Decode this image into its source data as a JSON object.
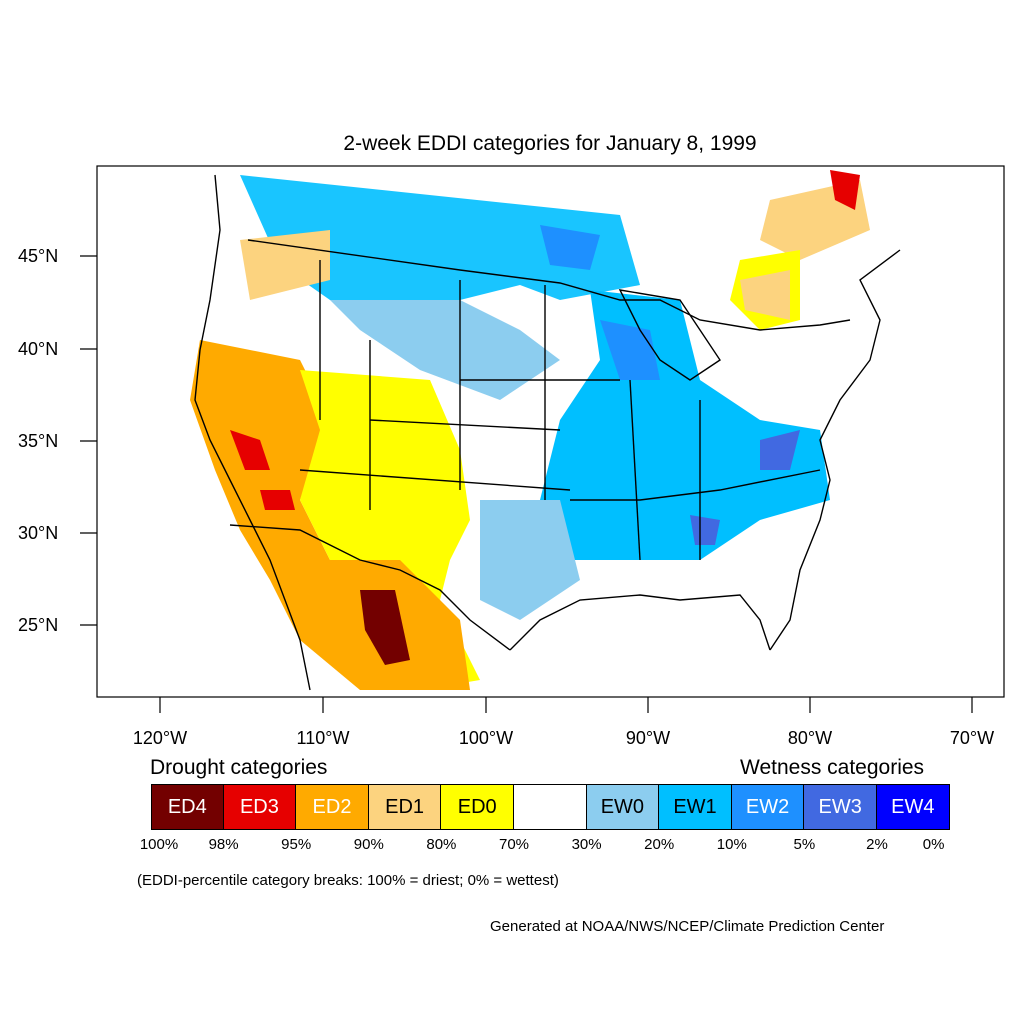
{
  "title": "2-week EDDI categories for January 8, 1999",
  "lat_labels": [
    "45°N",
    "40°N",
    "35°N",
    "30°N",
    "25°N"
  ],
  "lon_labels": [
    "120°W",
    "110°W",
    "100°W",
    "90°W",
    "80°W",
    "70°W"
  ],
  "legend": {
    "drought_heading": "Drought categories",
    "wetness_heading": "Wetness categories",
    "categories": [
      {
        "label": "ED4",
        "color": "#730000",
        "text_color": "#ffffff"
      },
      {
        "label": "ED3",
        "color": "#e60000",
        "text_color": "#ffffff"
      },
      {
        "label": "ED2",
        "color": "#ffaa00",
        "text_color": "#ffffff"
      },
      {
        "label": "ED1",
        "color": "#fcd37f",
        "text_color": "#000000"
      },
      {
        "label": "ED0",
        "color": "#ffff00",
        "text_color": "#000000"
      },
      {
        "label": "",
        "color": "#ffffff",
        "text_color": "#000000"
      },
      {
        "label": "EW0",
        "color": "#8ccdef",
        "text_color": "#000000"
      },
      {
        "label": "EW1",
        "color": "#00bfff",
        "text_color": "#000000"
      },
      {
        "label": "EW2",
        "color": "#1e90ff",
        "text_color": "#ffffff"
      },
      {
        "label": "EW3",
        "color": "#4169e1",
        "text_color": "#ffffff"
      },
      {
        "label": "EW4",
        "color": "#0000ff",
        "text_color": "#ffffff"
      }
    ],
    "breaks": [
      "100%",
      "98%",
      "95%",
      "90%",
      "80%",
      "70%",
      "30%",
      "20%",
      "10%",
      "5%",
      "2%",
      "0%"
    ],
    "note": "(EDDI-percentile category breaks: 100% = driest; 0% = wettest)"
  },
  "credit": "Generated at NOAA/NWS/NCEP/Climate Prediction Center"
}
